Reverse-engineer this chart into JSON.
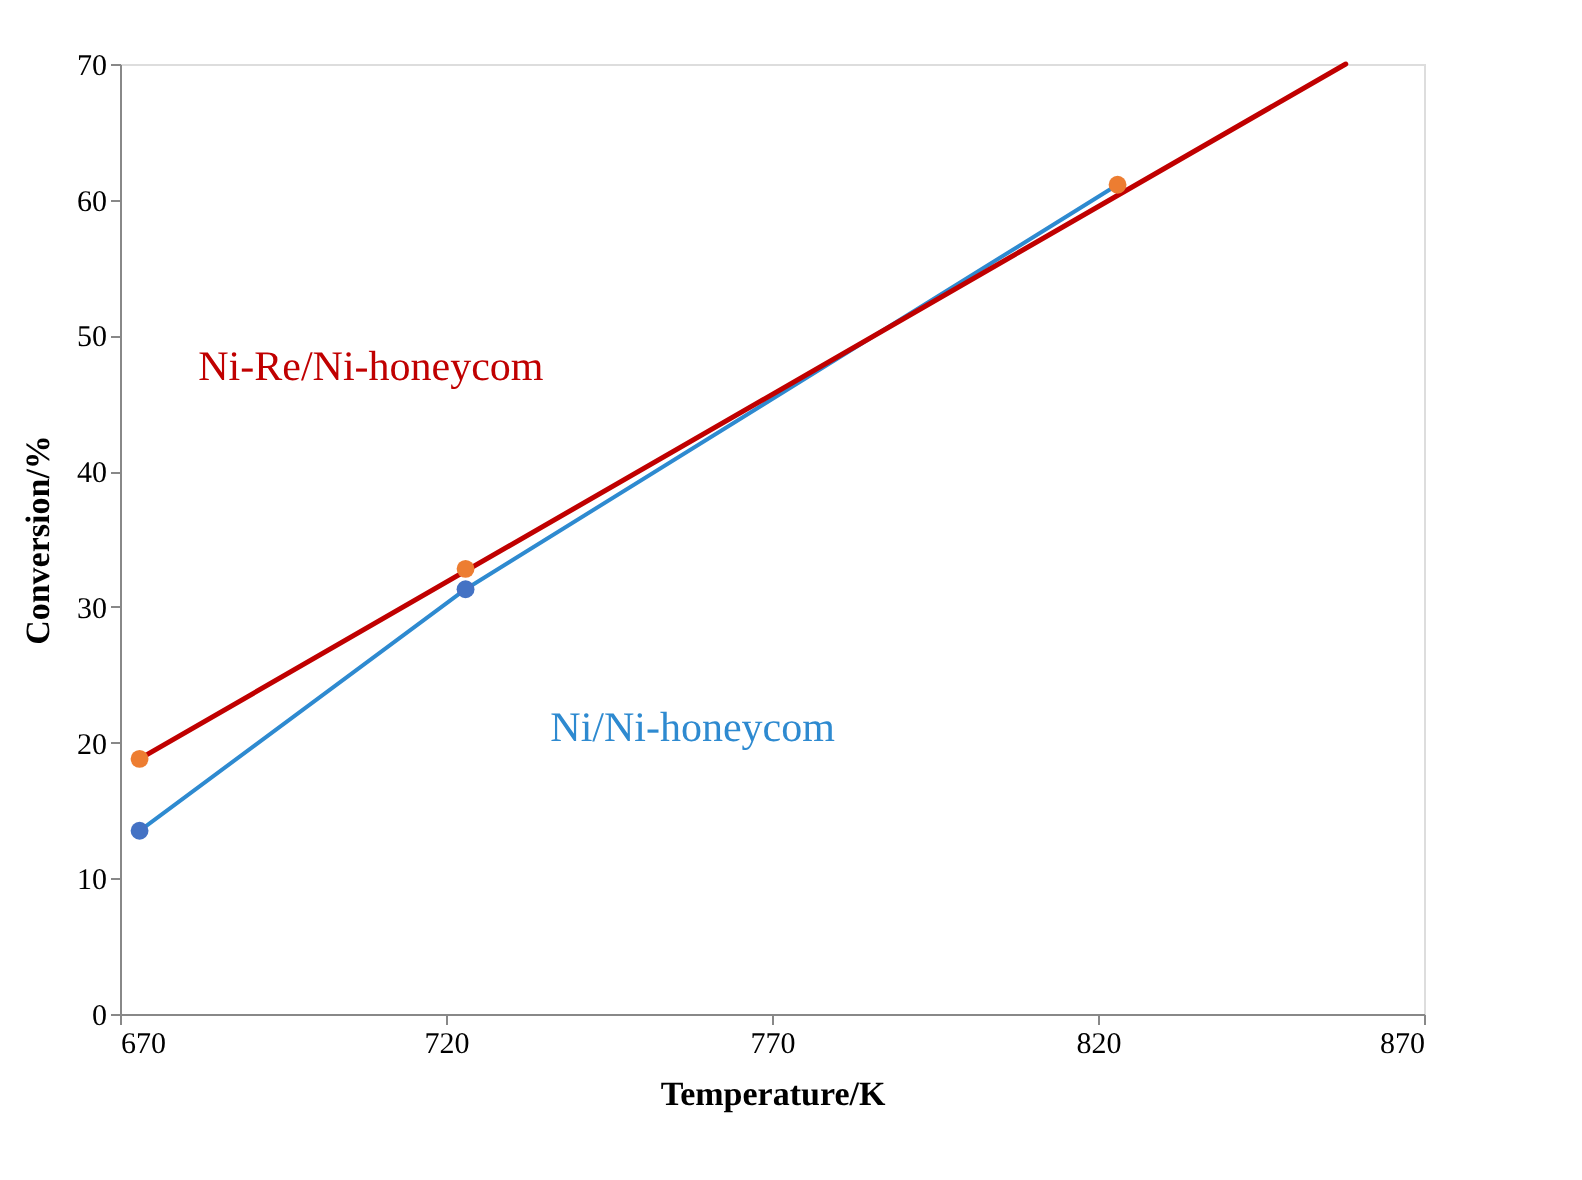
{
  "chart_data": {
    "type": "line",
    "xlabel": "Temperature/K",
    "ylabel": "Conversion/%",
    "xlim": [
      670,
      870
    ],
    "xticks": [
      670,
      720,
      770,
      820,
      870
    ],
    "ylim": [
      0,
      70
    ],
    "yticks": [
      0,
      10,
      20,
      30,
      40,
      50,
      60,
      70
    ],
    "marker": "none",
    "line_style": "solid",
    "series": [
      {
        "name": "Ni/Ni-honeycom",
        "color": "#2e8ad0",
        "x": [
          673,
          723,
          823
        ],
        "values": [
          13.5,
          31.3,
          61.1
        ]
      },
      {
        "name": "Ni-Re/Ni-honeycom",
        "color": "#c00000",
        "x": [
          673,
          858
        ],
        "values": [
          18.8,
          70
        ]
      },
      {
        "type": "scatter",
        "color": "#4472c4",
        "marker": "circle",
        "x": [
          673,
          723
        ],
        "values": [
          13.5,
          31.3
        ]
      },
      {
        "type": "scatter",
        "color": "#ed7d31",
        "marker": "circle",
        "x": [
          673,
          723,
          823
        ],
        "values": [
          18.8,
          32.8,
          61.1
        ]
      }
    ]
  }
}
